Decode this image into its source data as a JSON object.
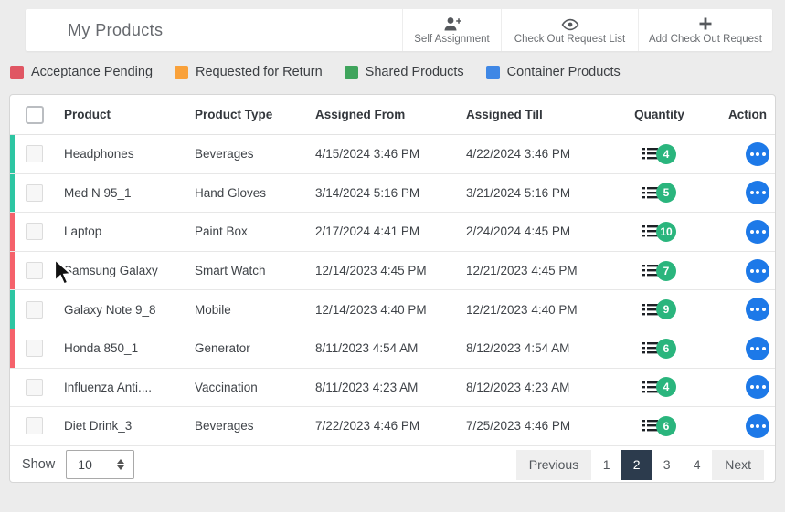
{
  "header": {
    "title": "My Products",
    "buttons": [
      {
        "label": "Self Assignment",
        "icon": "person-plus-icon"
      },
      {
        "label": "Check Out Request List",
        "icon": "eye-icon"
      },
      {
        "label": "Add Check Out Request",
        "icon": "plus-icon"
      }
    ]
  },
  "legend": {
    "items": [
      {
        "label": "Acceptance Pending",
        "color": "#e05663"
      },
      {
        "label": "Requested for Return",
        "color": "#f9a13a"
      },
      {
        "label": "Shared Products",
        "color": "#3fa45c"
      },
      {
        "label": "Container Products",
        "color": "#3f87e5"
      }
    ]
  },
  "table": {
    "columns": {
      "product": "Product",
      "type": "Product Type",
      "from": "Assigned From",
      "till": "Assigned Till",
      "qty": "Quantity",
      "action": "Action"
    },
    "status_colors": {
      "shared": "#2dc5a2",
      "acceptance_pending": "#f5626b",
      "none": "transparent"
    },
    "rows": [
      {
        "product": "Headphones",
        "type": "Beverages",
        "from": "4/15/2024 3:46 PM",
        "till": "4/22/2024 3:46 PM",
        "qty": "4",
        "status": "shared"
      },
      {
        "product": "Med N 95_1",
        "type": "Hand Gloves",
        "from": "3/14/2024 5:16 PM",
        "till": "3/21/2024 5:16 PM",
        "qty": "5",
        "status": "shared"
      },
      {
        "product": "Laptop",
        "type": "Paint Box",
        "from": "2/17/2024 4:41 PM",
        "till": "2/24/2024 4:45 PM",
        "qty": "10",
        "status": "acceptance_pending"
      },
      {
        "product": "Samsung Galaxy",
        "type": "Smart Watch",
        "from": "12/14/2023 4:45 PM",
        "till": "12/21/2023 4:45 PM",
        "qty": "7",
        "status": "acceptance_pending"
      },
      {
        "product": "Galaxy Note 9_8",
        "type": "Mobile",
        "from": "12/14/2023 4:40 PM",
        "till": "12/21/2023 4:40 PM",
        "qty": "9",
        "status": "shared"
      },
      {
        "product": "Honda 850_1",
        "type": "Generator",
        "from": "8/11/2023 4:54 AM",
        "till": "8/12/2023 4:54 AM",
        "qty": "6",
        "status": "acceptance_pending"
      },
      {
        "product": "Influenza Anti....",
        "type": "Vaccination",
        "from": "8/11/2023 4:23 AM",
        "till": "8/12/2023 4:23 AM",
        "qty": "4",
        "status": "none"
      },
      {
        "product": "Diet Drink_3",
        "type": "Beverages",
        "from": "7/22/2023 4:46 PM",
        "till": "7/25/2023 4:46 PM",
        "qty": "6",
        "status": "none"
      }
    ],
    "accent_colors": {
      "quantity_badge": "#2ab57d",
      "action_button": "#1d79e8",
      "active_page_bg": "#2c3b4d"
    }
  },
  "footer": {
    "show_label": "Show",
    "page_size_value": "10",
    "pagination": {
      "previous_label": "Previous",
      "next_label": "Next",
      "pages": [
        "1",
        "2",
        "3",
        "4"
      ],
      "active_page": "2"
    }
  }
}
